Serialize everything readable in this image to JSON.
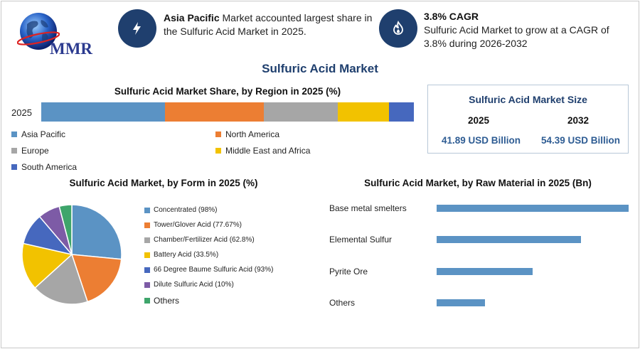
{
  "header": {
    "logo_text": "MMR",
    "block1": {
      "bold": "Asia Pacific",
      "text": " Market accounted largest share in the Sulfuric Acid Market in 2025.",
      "icon": "lightning-icon"
    },
    "block2": {
      "title": "3.8% CAGR",
      "text": "Sulfuric Acid Market to grow at a CAGR of 3.8% during 2026-2032",
      "icon": "flame-icon"
    }
  },
  "main_title": "Sulfuric Acid Market",
  "colors": {
    "navy": "#1f3f6e",
    "asia_pacific": "#5b93c4",
    "north_america": "#ec7e33",
    "europe": "#a6a6a6",
    "middle_east_africa": "#f2c200",
    "south_america": "#4668be",
    "raw_bar": "#5b93c4"
  },
  "region_chart": {
    "title": "Sulfuric Acid Market Share, by Region in 2025 (%)",
    "year_label": "2025"
  },
  "size_box": {
    "title": "Sulfuric Acid Market Size",
    "year1": "2025",
    "value1": "41.89 USD Billion",
    "year2": "2032",
    "value2": "54.39 USD Billion"
  },
  "form_chart": {
    "title": "Sulfuric Acid Market, by Form in 2025 (%)"
  },
  "raw_chart": {
    "title": "Sulfuric Acid Market, by Raw Material in 2025 (Bn)"
  },
  "chart_data": [
    {
      "type": "bar",
      "stacked": true,
      "orientation": "horizontal",
      "title": "Sulfuric Acid Market Share, by Region in 2025 (%)",
      "categories": [
        "2025"
      ],
      "series": [
        {
          "name": "Asia Pacific",
          "values": [
            33.3
          ],
          "color": "#5b93c4"
        },
        {
          "name": "North America",
          "values": [
            26.5
          ],
          "color": "#ec7e33"
        },
        {
          "name": "Europe",
          "values": [
            19.8
          ],
          "color": "#a6a6a6"
        },
        {
          "name": "Middle East and Africa",
          "values": [
            13.7
          ],
          "color": "#f2c200"
        },
        {
          "name": "South America",
          "values": [
            6.7
          ],
          "color": "#4668be"
        }
      ],
      "legend": "bottom"
    },
    {
      "type": "pie",
      "title": "Sulfuric Acid Market, by Form in 2025 (%)",
      "labels": [
        "Concentrated (98%)",
        "Tower/Glover Acid (77.67%)",
        "Chamber/Fertilizer Acid (62.8%)",
        "Battery Acid (33.5%)",
        "66 Degree Baume Sulfuric Acid (93%)",
        "Dilute Sulfuric Acid (10%)",
        "Others"
      ],
      "values": [
        26,
        18,
        18,
        15,
        10,
        7,
        4
      ],
      "colors": [
        "#5b93c4",
        "#ec7e33",
        "#a6a6a6",
        "#f2c200",
        "#4668be",
        "#7d5ba6",
        "#3ea56b"
      ],
      "legend": "right"
    },
    {
      "type": "bar",
      "orientation": "horizontal",
      "title": "Sulfuric Acid Market, by Raw Material in 2025 (Bn)",
      "categories": [
        "Base metal smelters",
        "Elemental Sulfur",
        "Pyrite Ore",
        "Others"
      ],
      "values": [
        27,
        20.3,
        13.5,
        6.8
      ],
      "xlim": [
        0,
        27
      ],
      "color": "#5b93c4"
    }
  ]
}
